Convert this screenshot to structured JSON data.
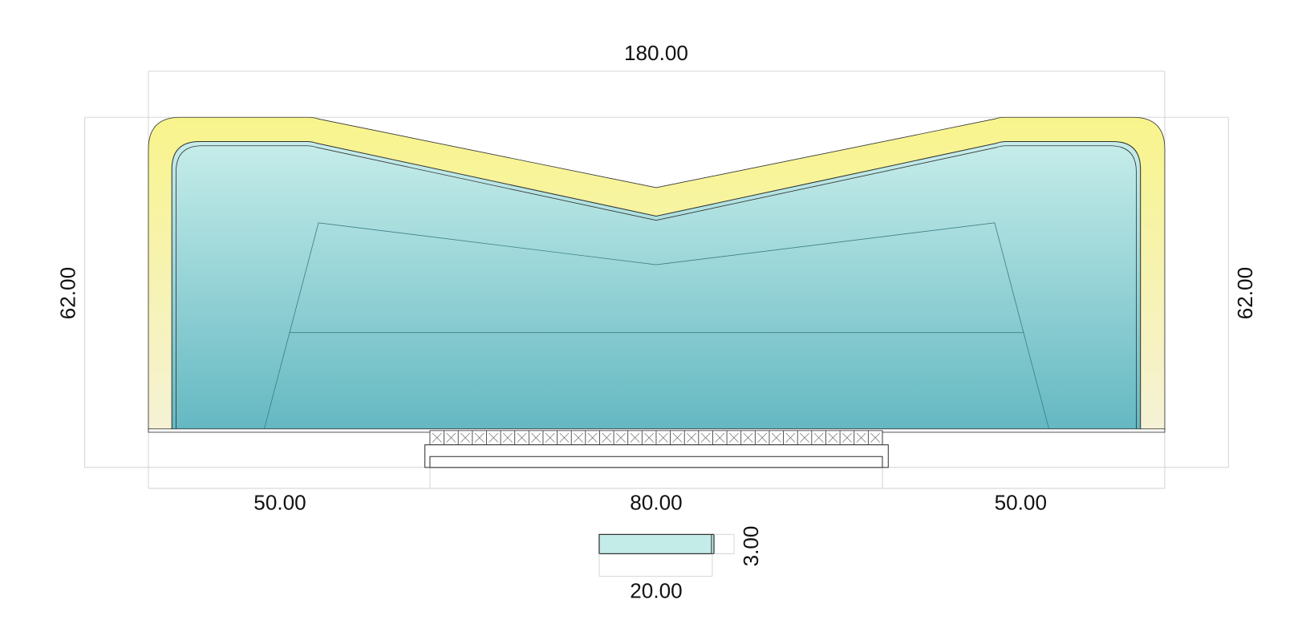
{
  "dimensions": {
    "top_width": "180.00",
    "left_height": "62.00",
    "right_height": "62.00",
    "bottom_left": "50.00",
    "bottom_center": "80.00",
    "bottom_right": "50.00",
    "step_height": "3.00",
    "step_width": "20.00"
  }
}
